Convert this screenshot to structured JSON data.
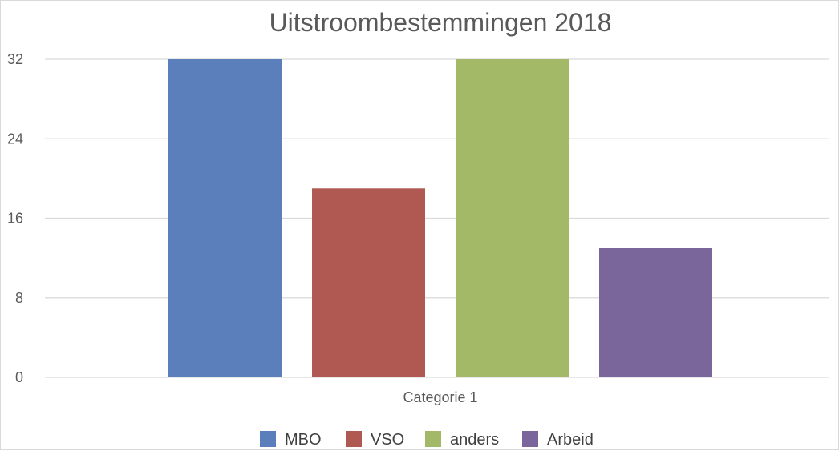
{
  "chart_data": {
    "type": "bar",
    "title": "Uitstroombestemmingen 2018",
    "categories": [
      "Categorie 1"
    ],
    "series": [
      {
        "name": "MBO",
        "values": [
          32
        ],
        "color": "#5b7fba"
      },
      {
        "name": "VSO",
        "values": [
          19
        ],
        "color": "#b05852"
      },
      {
        "name": "anders",
        "values": [
          32
        ],
        "color": "#a3b968"
      },
      {
        "name": "Arbeid",
        "values": [
          13
        ],
        "color": "#7b669c"
      }
    ],
    "ylim": [
      0,
      32
    ],
    "yticks": [
      "0",
      "8",
      "16",
      "24",
      "32"
    ],
    "grid": true,
    "legend_position": "bottom"
  }
}
